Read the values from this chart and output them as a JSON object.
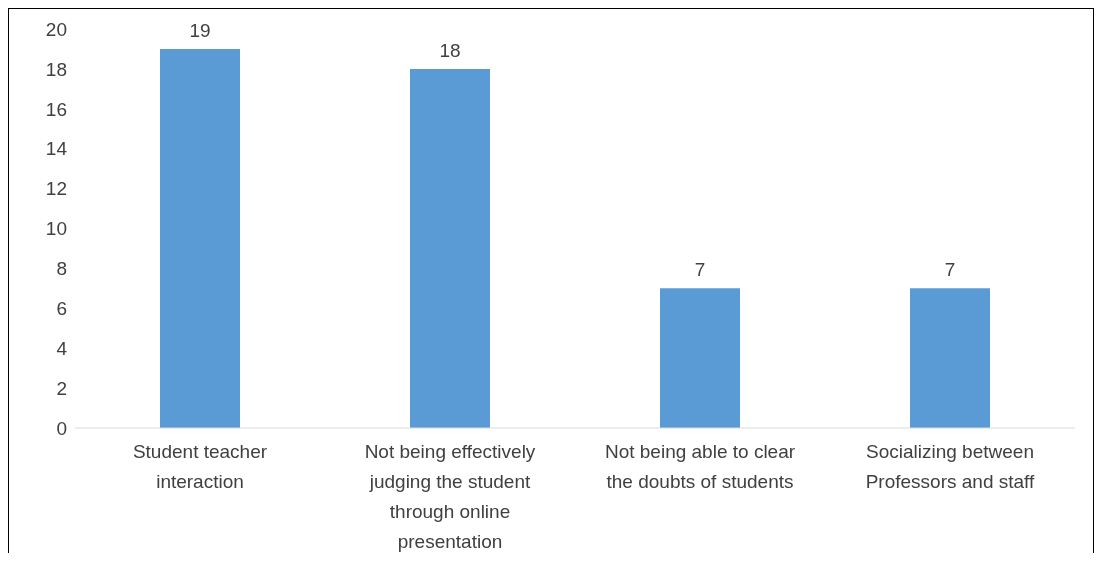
{
  "chart_data": {
    "type": "bar",
    "categories": [
      "Student teacher interaction",
      "Not being effectively judging the student through online presentation",
      "Not being able to clear the doubts of students",
      "Socializing between Professors and staff"
    ],
    "values": [
      19,
      18,
      7,
      7
    ],
    "color": "#5b9bd5",
    "ylim": [
      0,
      20
    ],
    "yticks": [
      0,
      2,
      4,
      6,
      8,
      10,
      12,
      14,
      16,
      18,
      20
    ],
    "grid": false,
    "data_labels": true,
    "legend": false
  }
}
